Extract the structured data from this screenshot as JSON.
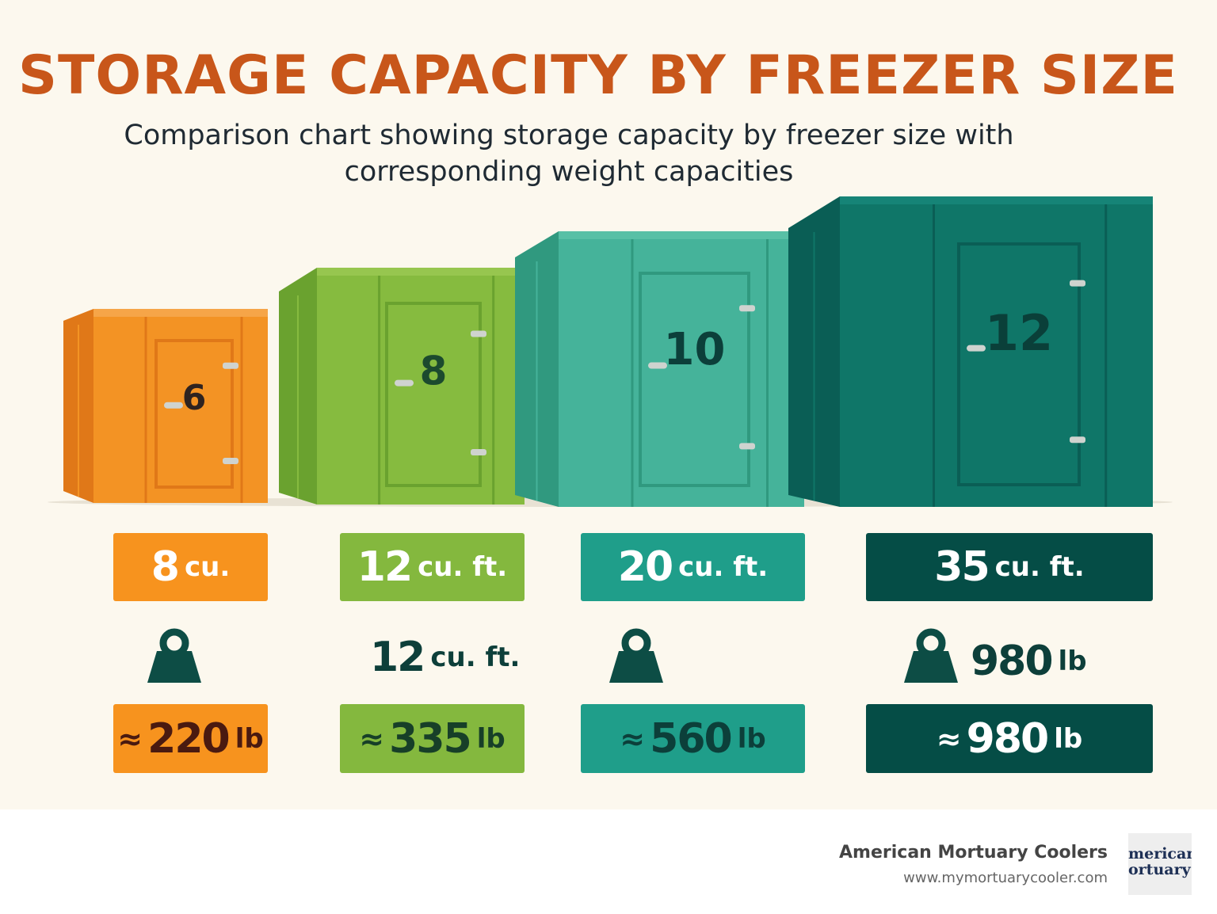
{
  "header": {
    "title": "STORAGE CAPACITY BY FREEZER SIZE",
    "subtitle": "Comparison chart showing storage capacity by freezer size with corresponding weight capacities"
  },
  "freezers": [
    {
      "door_label": "6",
      "capacity": {
        "number": "8",
        "unit": "cu."
      },
      "middle": null,
      "weight": {
        "symbol": "≈",
        "number": "220",
        "unit": "lb"
      }
    },
    {
      "door_label": "8",
      "capacity": {
        "number": "12",
        "unit": "cu. ft."
      },
      "middle": {
        "number": "12",
        "unit": "cu. ft."
      },
      "weight": {
        "symbol": "≈",
        "number": "335",
        "unit": "lb"
      }
    },
    {
      "door_label": "10",
      "capacity": {
        "number": "20",
        "unit": "cu. ft."
      },
      "middle": null,
      "weight": {
        "symbol": "≈",
        "number": "560",
        "unit": "lb"
      }
    },
    {
      "door_label": "12",
      "capacity": {
        "number": "35",
        "unit": "cu. ft."
      },
      "middle": {
        "number": "980",
        "unit": "lb"
      },
      "weight": {
        "symbol": "≈",
        "number": "980",
        "unit": "lb"
      }
    }
  ],
  "footer": {
    "brand": "American Mortuary Coolers",
    "url": "www.mymortuarycooler.com",
    "logo_line1": "merican",
    "logo_line2": "ortuary"
  }
}
